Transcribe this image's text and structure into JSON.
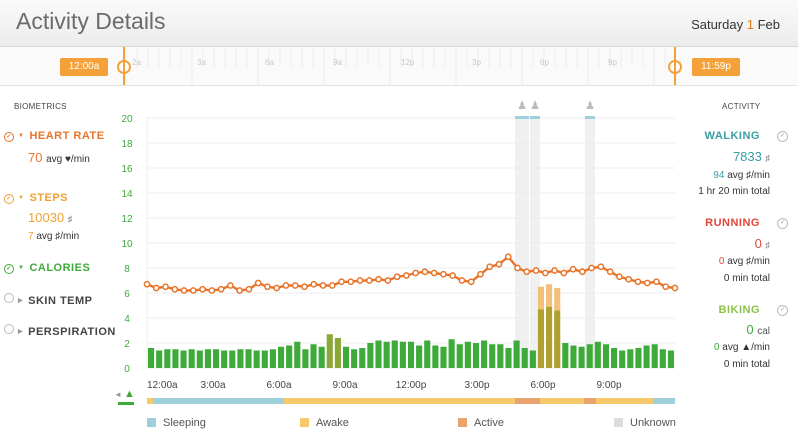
{
  "header": {
    "title": "Activity Details",
    "day_label": "Saturday",
    "day_num": "1",
    "month": "Feb"
  },
  "timebar": {
    "start_label": "12:00a",
    "end_label": "11:59p",
    "ticks": [
      "2a",
      "3a",
      "6a",
      "9a",
      "12p",
      "3p",
      "6p",
      "9p"
    ]
  },
  "biometrics": {
    "title": "BIOMETRICS",
    "heart_rate": {
      "label": "HEART RATE",
      "value": "70",
      "unit": "avg ♥/min"
    },
    "steps": {
      "label": "STEPS",
      "value": "10030",
      "icon": "♯",
      "avg_value": "7",
      "avg_unit": "avg ♯/min"
    },
    "calories": {
      "label": "CALORIES"
    },
    "skin_temp": {
      "label": "SKIN TEMP"
    },
    "perspiration": {
      "label": "PERSPIRATION"
    }
  },
  "activity": {
    "title": "ACTIVITY",
    "walking": {
      "label": "WALKING",
      "value": "7833",
      "avg": "94",
      "avg_unit": "avg ♯/min",
      "total": "1 hr 20 min total"
    },
    "running": {
      "label": "RUNNING",
      "value": "0",
      "avg": "0",
      "avg_unit": "avg ♯/min",
      "total": "0 min total"
    },
    "biking": {
      "label": "BIKING",
      "value": "0",
      "unit": "cal",
      "avg": "0",
      "avg_unit": "avg ▲/min",
      "total": "0 min total"
    }
  },
  "legend": [
    {
      "label": "Sleeping",
      "color": "#9ed0dc"
    },
    {
      "label": "Awake",
      "color": "#f6c96b"
    },
    {
      "label": "Active",
      "color": "#eba36d"
    },
    {
      "label": "Unknown",
      "color": "#dcdcdc"
    }
  ],
  "colors": {
    "orange": "#e8742a",
    "green": "#3eaa3a",
    "teal": "#3a9ea5",
    "red": "#e2463a",
    "olive": "#b0a030",
    "peach": "#f2c07a"
  },
  "chart_data": {
    "type": "bar",
    "y_ticks": [
      "0",
      "2",
      "4",
      "6",
      "8",
      "10",
      "12",
      "14",
      "16",
      "18",
      "20"
    ],
    "ylim": [
      0,
      20
    ],
    "x_tick_labels": [
      "12:00a",
      "3:00a",
      "6:00a",
      "9:00a",
      "12:00p",
      "3:00p",
      "6:00p",
      "9:00p"
    ],
    "x_range_hours": [
      0,
      24
    ],
    "series": [
      {
        "name": "line",
        "values": [
          6.7,
          6.4,
          6.5,
          6.3,
          6.2,
          6.2,
          6.3,
          6.2,
          6.3,
          6.6,
          6.2,
          6.3,
          6.8,
          6.5,
          6.4,
          6.6,
          6.6,
          6.5,
          6.7,
          6.6,
          6.6,
          6.9,
          6.9,
          7.0,
          7.0,
          7.1,
          7.0,
          7.3,
          7.4,
          7.6,
          7.7,
          7.6,
          7.5,
          7.4,
          7.0,
          6.9,
          7.5,
          8.1,
          8.3,
          8.9,
          8.0,
          7.7,
          7.8,
          7.6,
          7.8,
          7.6,
          7.9,
          7.7,
          8.0,
          8.1,
          7.7,
          7.3,
          7.1,
          6.9,
          6.8,
          6.9,
          6.5,
          6.4
        ]
      },
      {
        "name": "bars",
        "values": [
          1.6,
          1.4,
          1.5,
          1.5,
          1.4,
          1.5,
          1.4,
          1.5,
          1.5,
          1.4,
          1.4,
          1.5,
          1.5,
          1.4,
          1.4,
          1.5,
          1.7,
          1.8,
          2.1,
          1.5,
          1.9,
          1.7,
          2.7,
          2.4,
          1.7,
          1.5,
          1.6,
          2.0,
          2.2,
          2.1,
          2.2,
          2.1,
          2.1,
          1.8,
          2.2,
          1.8,
          1.7,
          2.3,
          1.9,
          2.1,
          2.0,
          2.2,
          1.9,
          1.9,
          1.6,
          2.2,
          1.6,
          1.4,
          4.7,
          4.9,
          4.6,
          2.0,
          1.8,
          1.7,
          1.9,
          2.1,
          1.9,
          1.6,
          1.4,
          1.5,
          1.6,
          1.8,
          1.9,
          1.5,
          1.4
        ]
      }
    ]
  }
}
